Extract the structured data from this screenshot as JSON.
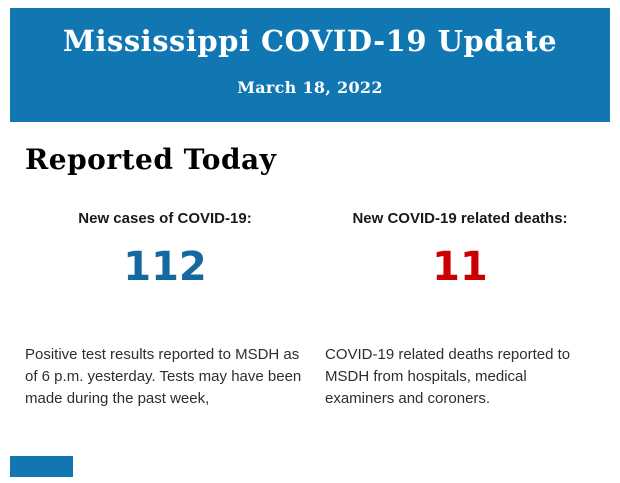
{
  "banner": {
    "title": "Mississippi COVID-19 Update",
    "date": "March 18, 2022",
    "background_color": "#1077b3",
    "text_color": "#ffffff"
  },
  "section": {
    "heading": "Reported Today"
  },
  "stats": [
    {
      "label": "New cases of COVID-19:",
      "value": "112",
      "value_color": "#16699e",
      "description": "Positive test results reported to MSDH as of 6 p.m. yesterday. Tests may have been made during the past week,"
    },
    {
      "label": "New COVID-19 related deaths:",
      "value": "11",
      "value_color": "#cc0000",
      "description": "COVID-19 related deaths reported to MSDH from hospitals, medical examiners and coroners."
    }
  ],
  "footer": {
    "fragment_color": "#1077b3"
  }
}
